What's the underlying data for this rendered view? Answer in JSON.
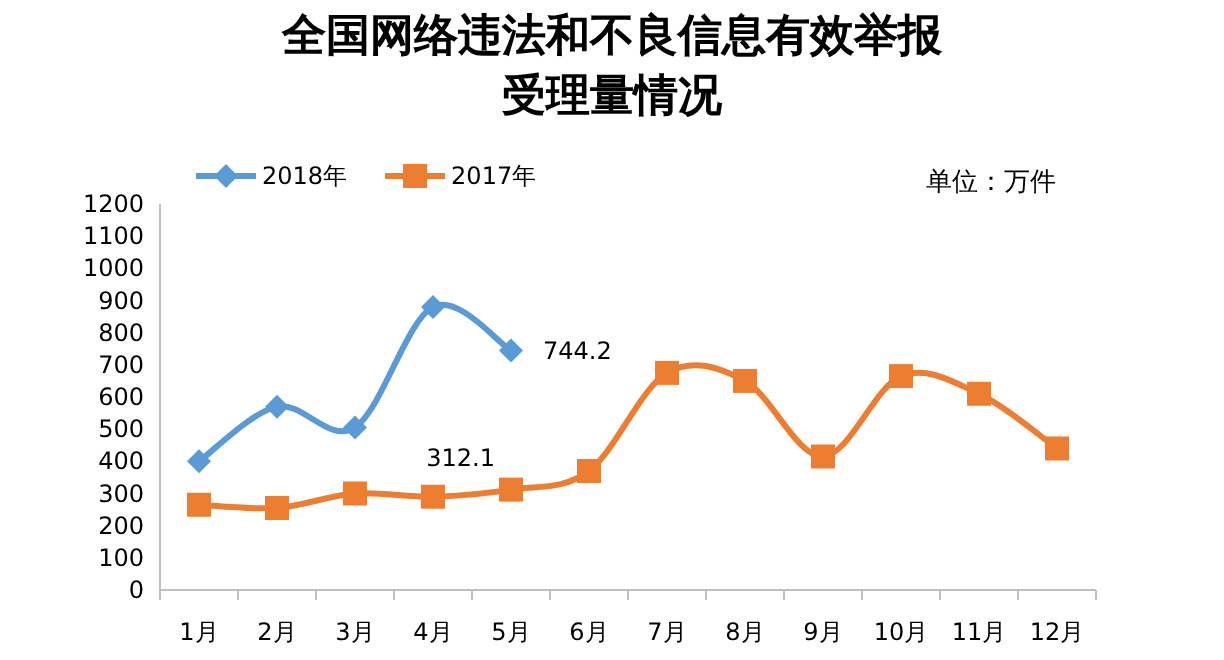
{
  "chart_data": {
    "type": "line",
    "title": "全国网络违法和不良信息有效举报受理量情况",
    "categories": [
      "1月",
      "2月",
      "3月",
      "4月",
      "5月",
      "6月",
      "7月",
      "8月",
      "9月",
      "10月",
      "11月",
      "12月"
    ],
    "series": [
      {
        "name": "2018年",
        "color": "#5b9bd5",
        "marker": "diamond",
        "values": [
          400,
          570,
          505,
          880,
          744.2,
          null,
          null,
          null,
          null,
          null,
          null,
          null
        ],
        "value_labels": [
          null,
          null,
          null,
          null,
          "744.2",
          null,
          null,
          null,
          null,
          null,
          null,
          null
        ]
      },
      {
        "name": "2017年",
        "color": "#ed7d31",
        "marker": "square",
        "values": [
          265,
          255,
          300,
          290,
          312.1,
          370,
          675,
          650,
          415,
          665,
          610,
          440
        ],
        "value_labels": [
          null,
          null,
          null,
          null,
          "312.1",
          null,
          null,
          null,
          null,
          null,
          null,
          null
        ]
      }
    ],
    "ylim": [
      0,
      1200
    ],
    "yticks": [
      0,
      100,
      200,
      300,
      400,
      500,
      600,
      700,
      800,
      900,
      1000,
      1100,
      1200
    ],
    "legend": "top left",
    "grid": false,
    "annotations": [
      "单位：万件"
    ]
  }
}
